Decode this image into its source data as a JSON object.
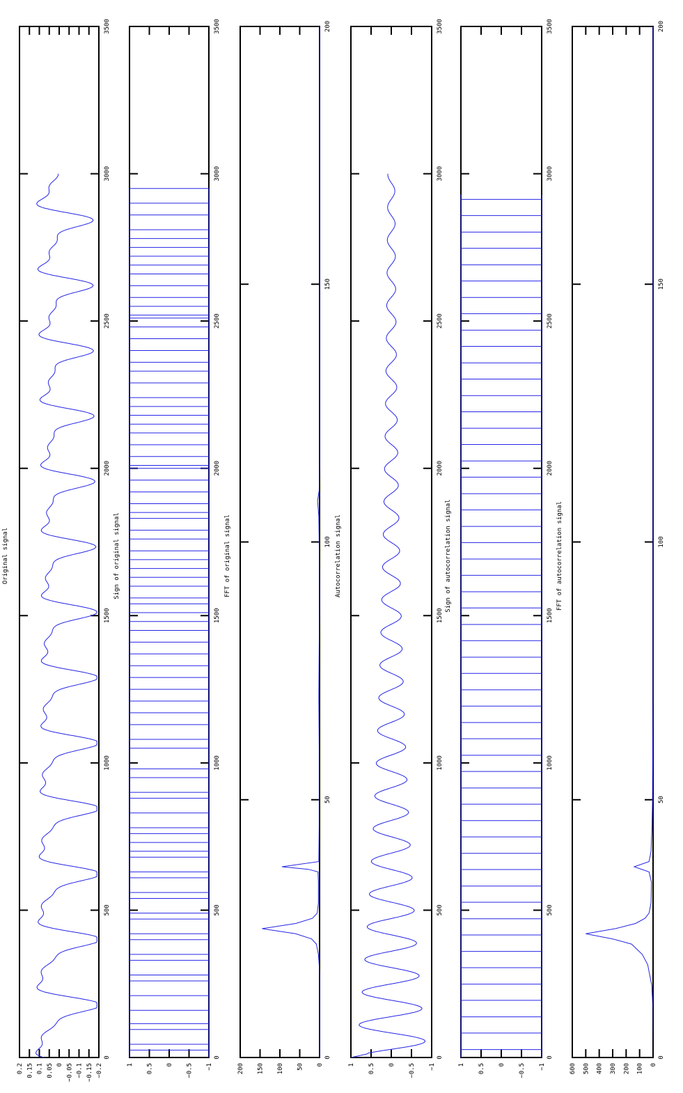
{
  "page": {
    "orientation": "rotated-90-clockwise",
    "background": "#ffffff",
    "line_color": "#2424e6",
    "axis_color": "#000000"
  },
  "chart_data": [
    {
      "type": "line",
      "title": "Original signal",
      "xlim": [
        0,
        3500
      ],
      "ylim": [
        -0.2,
        0.2
      ],
      "xticks": [
        0,
        500,
        1000,
        1500,
        2000,
        2500,
        3000,
        3500
      ],
      "yticks": [
        -0.2,
        -0.15,
        -0.1,
        -0.05,
        0,
        0.05,
        0.1,
        0.15,
        0.2
      ],
      "xtick_labels": [
        "0",
        "500",
        "1000",
        "1500",
        "2000",
        "2500",
        "3000",
        "3500"
      ],
      "ytick_labels": [
        "−0.2",
        "−0.15",
        "−0.1",
        "−0.05",
        "0",
        "0.05",
        "0.1",
        "0.15",
        "0.2"
      ],
      "show_xtick_labels": true,
      "signal": {
        "kind": "speech-like periodic",
        "x_end": 3000,
        "period": 222,
        "amplitude": 0.19
      }
    },
    {
      "type": "line",
      "title": "Sign of original signal",
      "xlim": [
        0,
        3500
      ],
      "ylim": [
        -1,
        1
      ],
      "xticks": [
        0,
        500,
        1000,
        1500,
        2000,
        2500,
        3000,
        3500
      ],
      "yticks": [
        -1,
        -0.5,
        0,
        0.5,
        1
      ],
      "xtick_labels": [
        "0",
        "500",
        "1000",
        "1500",
        "2000",
        "2500",
        "3000",
        "3500"
      ],
      "ytick_labels": [
        "−1",
        "−0.5",
        "0",
        "0.5",
        "1"
      ],
      "show_xtick_labels": true,
      "signal": {
        "kind": "sign",
        "x_end": 2950,
        "zero_crossings": [
          25,
          45,
          95,
          115,
          160,
          210,
          260,
          280,
          330,
          350,
          400,
          420,
          470,
          490,
          540,
          560,
          610,
          630,
          680,
          700,
          730,
          760,
          780,
          830,
          880,
          900,
          950,
          980,
          1050,
          1080,
          1130,
          1170,
          1210,
          1250,
          1290,
          1330,
          1370,
          1410,
          1450,
          1480,
          1510,
          1540,
          1560,
          1600,
          1630,
          1660,
          1690,
          1720,
          1760,
          1790,
          1830,
          1850,
          1880,
          1920,
          1960,
          2000,
          2010,
          2040,
          2080,
          2120,
          2150,
          2180,
          2210,
          2240,
          2290,
          2330,
          2360,
          2400,
          2440,
          2480,
          2510,
          2520,
          2550,
          2580,
          2620,
          2660,
          2690,
          2720,
          2750,
          2780,
          2810,
          2860,
          2900,
          2950
        ]
      }
    },
    {
      "type": "line",
      "title": "FFT of original signal",
      "xlim": [
        0,
        200
      ],
      "ylim": [
        0,
        200
      ],
      "xticks": [
        0,
        50,
        100,
        150,
        200
      ],
      "yticks": [
        0,
        50,
        100,
        150,
        200
      ],
      "xtick_labels": [
        "0",
        "50",
        "100",
        "150",
        "200"
      ],
      "ytick_labels": [
        "0",
        "50",
        "100",
        "150",
        "200"
      ],
      "show_xtick_labels": true,
      "x": [
        0,
        16,
        18,
        20,
        22,
        23,
        24,
        25,
        26,
        27,
        28,
        30,
        34,
        36,
        36.5,
        37,
        38,
        45,
        60,
        70,
        80,
        90,
        100,
        105,
        108,
        110,
        115,
        130,
        160,
        200
      ],
      "y": [
        0,
        0,
        1,
        3,
        8,
        20,
        60,
        145,
        60,
        18,
        6,
        3,
        3,
        4,
        28,
        95,
        2,
        1,
        1,
        2,
        1,
        0,
        1,
        2,
        5,
        1,
        0,
        0,
        0,
        0
      ]
    },
    {
      "type": "line",
      "title": "Autocorrelation signal",
      "xlim": [
        0,
        3500
      ],
      "ylim": [
        -1,
        1
      ],
      "xticks": [
        0,
        500,
        1000,
        1500,
        2000,
        2500,
        3000,
        3500
      ],
      "yticks": [
        -1,
        -0.5,
        0,
        0.5,
        1
      ],
      "xtick_labels": [
        "0",
        "500",
        "1000",
        "1500",
        "2000",
        "2500",
        "3000",
        "3500"
      ],
      "ytick_labels": [
        "−1",
        "−0.5",
        "0",
        "0.5",
        "1"
      ],
      "show_xtick_labels": true,
      "signal": {
        "kind": "damped oscillation",
        "x_end": 3000,
        "period": 111,
        "start": 1
      }
    },
    {
      "type": "line",
      "title": "Sign of autocorrelation signal",
      "xlim": [
        0,
        3500
      ],
      "ylim": [
        -1,
        1
      ],
      "xticks": [
        0,
        500,
        1000,
        1500,
        2000,
        2500,
        3000,
        3500
      ],
      "yticks": [
        -1,
        -0.5,
        0,
        0.5,
        1
      ],
      "xtick_labels": [
        "0",
        "500",
        "1000",
        "1500",
        "2000",
        "2500",
        "3000",
        "3500"
      ],
      "ytick_labels": [
        "−1",
        "−0.5",
        "0",
        "0.5",
        "1"
      ],
      "show_xtick_labels": true,
      "signal": {
        "kind": "sign of damped oscillation",
        "x_end": 2930,
        "half_period": 55.5,
        "offset": 27
      }
    },
    {
      "type": "line",
      "title": "FFT of autocorrelation signal",
      "xlim": [
        0,
        200
      ],
      "ylim": [
        0,
        600
      ],
      "xticks": [
        0,
        50,
        100,
        150,
        200
      ],
      "yticks": [
        0,
        100,
        200,
        300,
        400,
        500,
        600
      ],
      "xtick_labels": [
        "0",
        "50",
        "100",
        "150",
        "200"
      ],
      "ytick_labels": [
        "0",
        "100",
        "200",
        "300",
        "400",
        "500",
        "600"
      ],
      "show_xtick_labels": true,
      "x": [
        0,
        10,
        14,
        18,
        20,
        22,
        23,
        24,
        25,
        26,
        27,
        28,
        30,
        34,
        36,
        37,
        38,
        40,
        45,
        50,
        60,
        70,
        200
      ],
      "y": [
        0,
        2,
        10,
        40,
        80,
        160,
        300,
        500,
        280,
        130,
        60,
        30,
        15,
        12,
        30,
        140,
        30,
        15,
        8,
        4,
        2,
        0,
        0
      ]
    }
  ]
}
